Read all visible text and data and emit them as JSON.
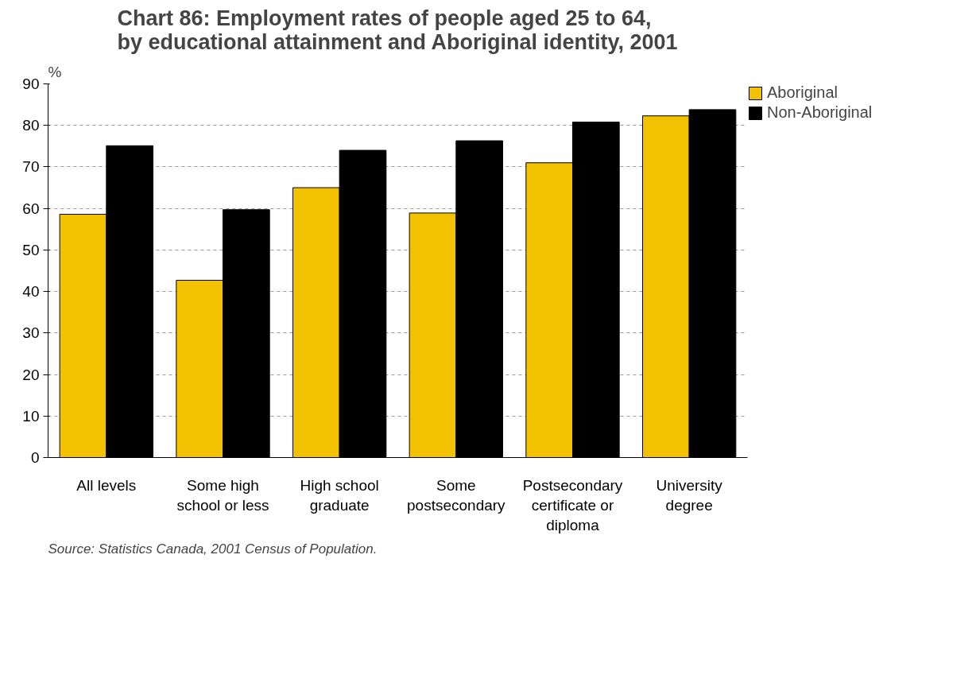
{
  "chart_data": {
    "type": "bar",
    "title": "Chart 86: Employment rates of people aged 25 to 64,\nby educational attainment and Aboriginal identity, 2001",
    "ylabel": "%",
    "categories": [
      "All levels",
      "Some high school or less",
      "High school graduate",
      "Some postsecondary",
      "Postsecondary certificate or diploma",
      "University degree"
    ],
    "series": [
      {
        "name": "Aboriginal",
        "color": "#f2c200",
        "values": [
          58.6,
          42.7,
          65.0,
          58.9,
          71.0,
          82.3
        ]
      },
      {
        "name": "Non-Aboriginal",
        "color": "#000000",
        "values": [
          75.1,
          59.7,
          74.0,
          76.3,
          80.8,
          83.8
        ]
      }
    ],
    "ylim": [
      0,
      90
    ],
    "yticks": [
      0,
      10,
      20,
      30,
      40,
      50,
      60,
      70,
      80,
      90
    ],
    "grid": "y",
    "legend": "top right",
    "annotations": [
      "Source: Statistics Canada, 2001 Census of Population."
    ]
  }
}
